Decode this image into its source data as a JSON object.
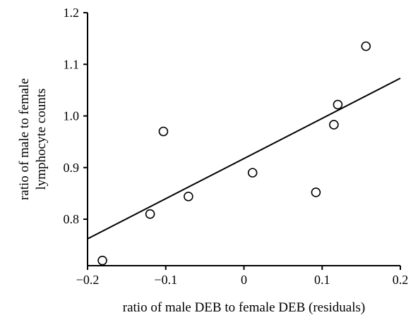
{
  "chart_data": {
    "type": "scatter",
    "xlabel": "ratio of male DEB to female DEB (residuals)",
    "ylabel": [
      "ratio of male to female",
      "lymphocyte counts"
    ],
    "xlim": [
      -0.2,
      0.2
    ],
    "ylim": [
      0.71,
      1.2
    ],
    "xticks": [
      -0.2,
      -0.1,
      0,
      0.1,
      0.2
    ],
    "xtick_labels": [
      "−0.2",
      "−0.1",
      "0",
      "0.1",
      "0.2"
    ],
    "yticks": [
      0.8,
      0.9,
      1.0,
      1.1,
      1.2
    ],
    "ytick_labels": [
      "0.8",
      "0.9",
      "1.0",
      "1.1",
      "1.2"
    ],
    "grid": false,
    "points": [
      {
        "x": -0.181,
        "y": 0.72
      },
      {
        "x": -0.12,
        "y": 0.81
      },
      {
        "x": -0.103,
        "y": 0.97
      },
      {
        "x": -0.071,
        "y": 0.844
      },
      {
        "x": 0.011,
        "y": 0.89
      },
      {
        "x": 0.092,
        "y": 0.852
      },
      {
        "x": 0.115,
        "y": 0.983
      },
      {
        "x": 0.12,
        "y": 1.022
      },
      {
        "x": 0.156,
        "y": 1.135
      }
    ],
    "trendline": {
      "x": [
        -0.2,
        0.2
      ],
      "y": [
        0.762,
        1.073
      ]
    }
  }
}
